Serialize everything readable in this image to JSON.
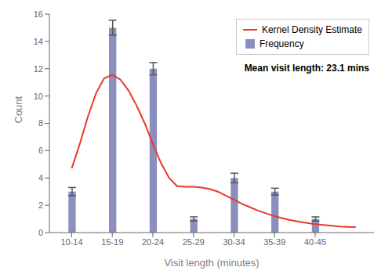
{
  "chart_data": {
    "type": "bar",
    "xlabel": "Visit length (minutes)",
    "ylabel": "Count",
    "xlim": [
      -0.55,
      7.45
    ],
    "xticks": [
      {
        "value": 0,
        "label": "10-14"
      },
      {
        "value": 1,
        "label": "15-19"
      },
      {
        "value": 2,
        "label": "20-24"
      },
      {
        "value": 3,
        "label": "25-29"
      },
      {
        "value": 4,
        "label": "30-34"
      },
      {
        "value": 5,
        "label": "35-39"
      },
      {
        "value": 6,
        "label": "40-45"
      }
    ],
    "ylim": [
      0,
      16
    ],
    "yticks": [
      0,
      2,
      4,
      6,
      8,
      10,
      12,
      14,
      16
    ],
    "legend": "upper right",
    "annotations": [
      "Mean visit length: 23.1 mins"
    ],
    "series": [
      {
        "name": "Frequency",
        "type": "bar",
        "color": "#8b8fbe",
        "values": [
          3,
          15,
          12,
          1,
          4,
          3,
          1
        ],
        "errors": [
          0.3,
          0.55,
          0.45,
          0.15,
          0.35,
          0.25,
          0.15
        ]
      },
      {
        "name": "Kernel Density Estimate",
        "type": "line",
        "color": "#e8392a",
        "x": [
          0,
          0.2,
          0.4,
          0.6,
          0.8,
          1.0,
          1.2,
          1.4,
          1.6,
          1.8,
          2.0,
          2.2,
          2.4,
          2.6,
          2.8,
          3.0,
          3.2,
          3.4,
          3.6,
          3.8,
          4.0,
          4.2,
          4.4,
          4.6,
          4.8,
          5.0,
          5.2,
          5.4,
          5.6,
          5.8,
          6.0,
          6.2,
          6.4,
          6.6,
          6.8,
          7.0
        ],
        "values": [
          4.7,
          6.5,
          8.5,
          10.2,
          11.3,
          11.55,
          11.2,
          10.4,
          9.3,
          8.0,
          6.5,
          5.1,
          4.0,
          3.4,
          3.35,
          3.35,
          3.3,
          3.2,
          3.0,
          2.7,
          2.4,
          2.1,
          1.85,
          1.6,
          1.4,
          1.2,
          1.05,
          0.9,
          0.8,
          0.7,
          0.62,
          0.56,
          0.5,
          0.45,
          0.42,
          0.4
        ]
      }
    ]
  }
}
